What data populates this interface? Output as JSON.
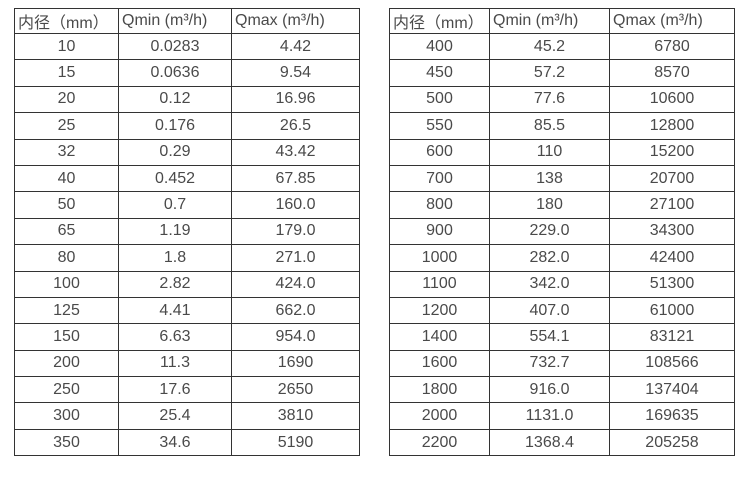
{
  "tables": [
    {
      "name": "flow-range-table-small-diameters",
      "headers": [
        "内径（mm）",
        "Qmin (m³/h)",
        "Qmax (m³/h)"
      ],
      "rows": [
        [
          "10",
          "0.0283",
          "4.42"
        ],
        [
          "15",
          "0.0636",
          "9.54"
        ],
        [
          "20",
          "0.12",
          "16.96"
        ],
        [
          "25",
          "0.176",
          "26.5"
        ],
        [
          "32",
          "0.29",
          "43.42"
        ],
        [
          "40",
          "0.452",
          "67.85"
        ],
        [
          "50",
          "0.7",
          "160.0"
        ],
        [
          "65",
          "1.19",
          "179.0"
        ],
        [
          "80",
          "1.8",
          "271.0"
        ],
        [
          "100",
          "2.82",
          "424.0"
        ],
        [
          "125",
          "4.41",
          "662.0"
        ],
        [
          "150",
          "6.63",
          "954.0"
        ],
        [
          "200",
          "11.3",
          "1690"
        ],
        [
          "250",
          "17.6",
          "2650"
        ],
        [
          "300",
          "25.4",
          "3810"
        ],
        [
          "350",
          "34.6",
          "5190"
        ]
      ]
    },
    {
      "name": "flow-range-table-large-diameters",
      "headers": [
        "内径（mm）",
        "Qmin (m³/h)",
        "Qmax (m³/h)"
      ],
      "rows": [
        [
          "400",
          "45.2",
          "6780"
        ],
        [
          "450",
          "57.2",
          "8570"
        ],
        [
          "500",
          "77.6",
          "10600"
        ],
        [
          "550",
          "85.5",
          "12800"
        ],
        [
          "600",
          "110",
          "15200"
        ],
        [
          "700",
          "138",
          "20700"
        ],
        [
          "800",
          "180",
          "27100"
        ],
        [
          "900",
          "229.0",
          "34300"
        ],
        [
          "1000",
          "282.0",
          "42400"
        ],
        [
          "1100",
          "342.0",
          "51300"
        ],
        [
          "1200",
          "407.0",
          "61000"
        ],
        [
          "1400",
          "554.1",
          "83121"
        ],
        [
          "1600",
          "732.7",
          "108566"
        ],
        [
          "1800",
          "916.0",
          "137404"
        ],
        [
          "2000",
          "1131.0",
          "169635"
        ],
        [
          "2200",
          "1368.4",
          "205258"
        ]
      ]
    }
  ],
  "colors": {
    "border": "#333333",
    "text": "#4a4a4a",
    "background": "#ffffff"
  }
}
